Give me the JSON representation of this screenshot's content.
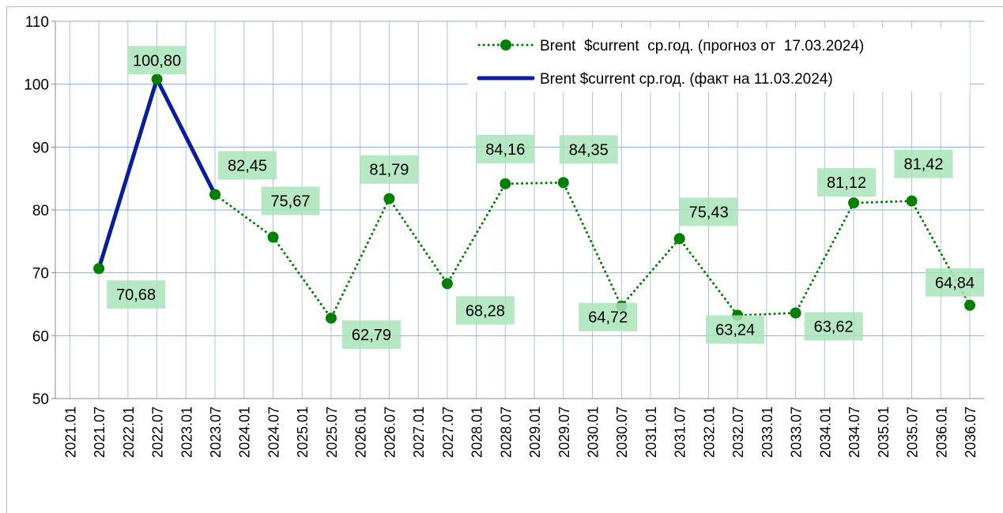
{
  "chart_data": {
    "type": "line",
    "categories": [
      "2021.01",
      "2021.07",
      "2022.01",
      "2022.07",
      "2023.01",
      "2023.07",
      "2024.01",
      "2024.07",
      "2025.01",
      "2025.07",
      "2026.01",
      "2026.07",
      "2027.01",
      "2027.07",
      "2028.01",
      "2028.07",
      "2029.01",
      "2029.07",
      "2030.01",
      "2030.07",
      "2031.01",
      "2031.07",
      "2032.01",
      "2032.07",
      "2033.01",
      "2033.07",
      "2034.01",
      "2034.07",
      "2035.01",
      "2035.07",
      "2036.01",
      "2036.07"
    ],
    "series": [
      {
        "name": "Brent  $current  ср.год. (прогноз от  17.03.2024)",
        "color": "#008000",
        "style": "dotted",
        "marker": "circle",
        "x": [
          "2021.07",
          "2022.07",
          "2023.07",
          "2024.07",
          "2025.07",
          "2026.07",
          "2027.07",
          "2028.07",
          "2029.07",
          "2030.07",
          "2031.07",
          "2032.07",
          "2033.07",
          "2034.07",
          "2035.07",
          "2036.07"
        ],
        "values": [
          70.68,
          100.8,
          82.45,
          75.67,
          62.79,
          81.79,
          68.28,
          84.16,
          84.35,
          64.72,
          75.43,
          63.24,
          63.62,
          81.12,
          81.42,
          64.84
        ],
        "value_labels": [
          "70,68",
          "100,80",
          "82,45",
          "75,67",
          "62,79",
          "81,79",
          "68,28",
          "84,16",
          "84,35",
          "64,72",
          "75,43",
          "63,24",
          "63,62",
          "81,12",
          "81,42",
          "64,84"
        ]
      },
      {
        "name": "Brent $current ср.год. (факт на 11.03.2024)",
        "color": "#0a1e9c",
        "style": "solid",
        "x": [
          "2021.07",
          "2022.07",
          "2023.07"
        ],
        "values": [
          70.68,
          100.8,
          82.45
        ]
      }
    ],
    "ylim": [
      50,
      110
    ],
    "yticks": [
      50,
      60,
      70,
      80,
      90,
      100,
      110
    ],
    "grid": true,
    "legend": "top-right"
  }
}
